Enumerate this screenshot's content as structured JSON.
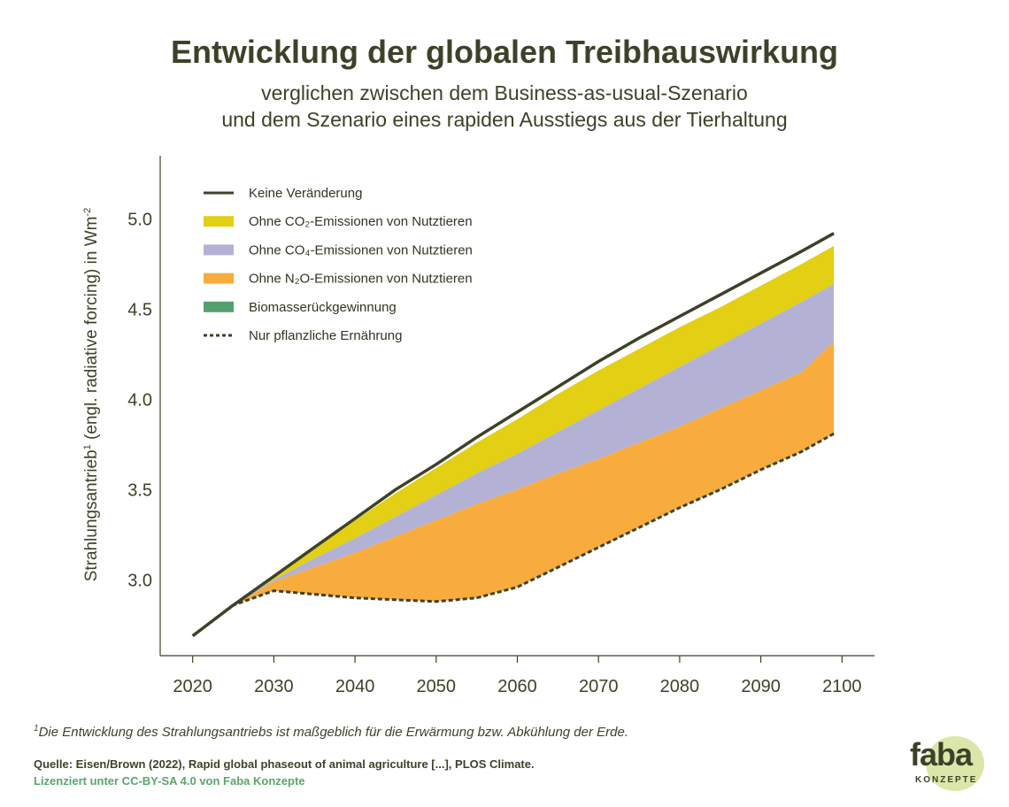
{
  "title": "Entwicklung der globalen Treibhauswirkung",
  "subtitle_line1": "verglichen zwischen dem Business-as-usual-Szenario",
  "subtitle_line2": "und dem Szenario eines rapiden Ausstiegs aus der Tierhaltung",
  "ylabel": {
    "main": "Strahlungsantrieb",
    "sup": "1",
    "rest": " (engl. radiative forcing) in Wm",
    "unit_sup": "-2"
  },
  "footnote": {
    "sup": "1",
    "text": "Die Entwicklung des Strahlungsantriebs ist maßgeblich für die Erwärmung bzw. Abkühlung der Erde."
  },
  "source": "Quelle: Eisen/Brown (2022), Rapid global phaseout of animal agriculture [...], PLOS Climate.",
  "license": "Lizenziert unter CC-BY-SA 4.0 von Faba Konzepte",
  "logo": {
    "word": "faba",
    "sub": "KONZEPTE"
  },
  "chart_data": {
    "type": "area",
    "x": [
      2020,
      2025,
      2030,
      2035,
      2040,
      2045,
      2050,
      2055,
      2060,
      2065,
      2070,
      2075,
      2080,
      2085,
      2090,
      2095,
      2099
    ],
    "xticks": [
      2020,
      2030,
      2040,
      2050,
      2060,
      2070,
      2080,
      2090,
      2100
    ],
    "yticks": [
      3.0,
      3.5,
      4.0,
      4.5,
      5.0
    ],
    "ylim": [
      2.58,
      5.35
    ],
    "xlim": [
      2016,
      2104
    ],
    "grid": false,
    "legend_position": "top-left",
    "series": [
      {
        "name": "Keine Veränderung",
        "style": "line",
        "color": "#3c4228",
        "values": [
          2.69,
          2.86,
          3.02,
          3.18,
          3.34,
          3.5,
          3.64,
          3.79,
          3.93,
          4.07,
          4.21,
          4.34,
          4.46,
          4.58,
          4.7,
          4.82,
          4.92
        ]
      },
      {
        "name": "Ohne CO₂-Emissionen von Nutztieren",
        "style": "area",
        "color": "#e3cf14",
        "values": [
          2.69,
          2.86,
          3.02,
          3.17,
          3.33,
          3.48,
          3.62,
          3.76,
          3.89,
          4.03,
          4.16,
          4.28,
          4.4,
          4.51,
          4.63,
          4.75,
          4.85
        ]
      },
      {
        "name": "Ohne CO₄-Emissionen von Nutztieren",
        "style": "area",
        "color": "#b3b2d4",
        "values": [
          2.69,
          2.86,
          3.0,
          3.12,
          3.23,
          3.35,
          3.47,
          3.59,
          3.7,
          3.82,
          3.94,
          4.06,
          4.18,
          4.3,
          4.42,
          4.54,
          4.64
        ]
      },
      {
        "name": "Ohne N₂O-Emissionen von Nutztieren",
        "style": "area",
        "color": "#f8ac3e",
        "values": [
          2.69,
          2.86,
          2.99,
          3.07,
          3.15,
          3.24,
          3.33,
          3.42,
          3.5,
          3.59,
          3.67,
          3.76,
          3.85,
          3.95,
          4.05,
          4.15,
          4.32
        ]
      },
      {
        "name": "Biomasserückgewinnung",
        "style": "area",
        "color": "#53a06f",
        "values": [
          2.69,
          2.86,
          2.94,
          2.92,
          2.9,
          2.89,
          2.88,
          2.9,
          2.96,
          3.07,
          3.18,
          3.29,
          3.4,
          3.5,
          3.61,
          3.71,
          3.81
        ]
      },
      {
        "name": "Nur pflanzliche Ernährung",
        "style": "dashed",
        "color": "#3c4228",
        "values": [
          2.69,
          2.86,
          2.94,
          2.92,
          2.9,
          2.89,
          2.88,
          2.9,
          2.96,
          3.07,
          3.18,
          3.29,
          3.4,
          3.5,
          3.61,
          3.71,
          3.81
        ]
      }
    ],
    "legend": [
      {
        "label": "Keine Veränderung",
        "style": "line"
      },
      {
        "label": "Ohne CO₂-Emissionen von Nutztieren",
        "style": "swatch",
        "color": "#e3cf14"
      },
      {
        "label": "Ohne CO₄-Emissionen von Nutztieren",
        "style": "swatch",
        "color": "#b3b2d4"
      },
      {
        "label": "Ohne N₂O-Emissionen von Nutztieren",
        "style": "swatch",
        "color": "#f8ac3e"
      },
      {
        "label": "Biomasserückgewinnung",
        "style": "swatch",
        "color": "#53a06f"
      },
      {
        "label": "Nur pflanzliche Ernährung",
        "style": "dashed"
      }
    ]
  }
}
